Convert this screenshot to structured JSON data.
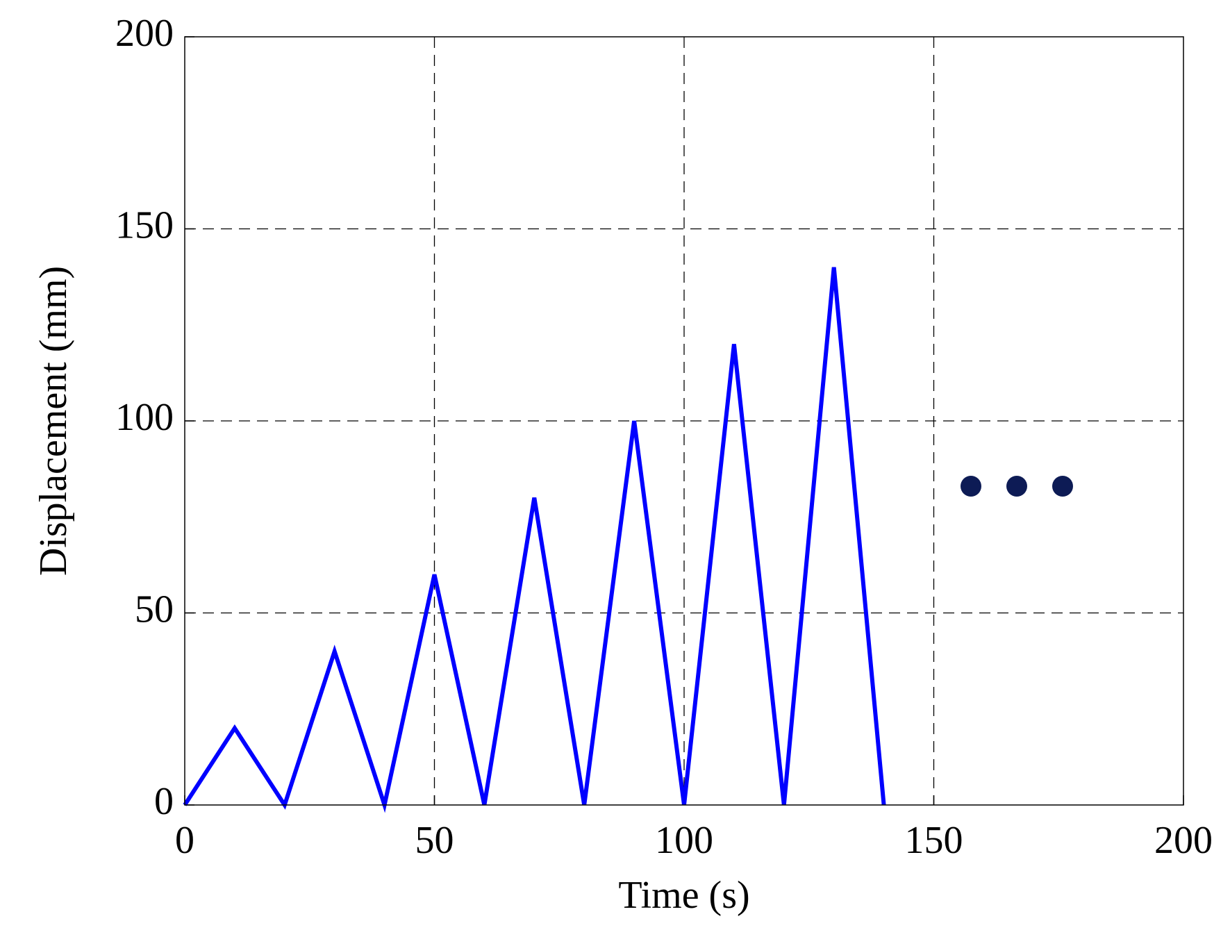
{
  "chart_data": {
    "type": "line",
    "xlabel": "Time (s)",
    "ylabel": "Displacement (mm)",
    "x": [
      0,
      10,
      20,
      30,
      40,
      50,
      60,
      70,
      80,
      90,
      100,
      110,
      120,
      130,
      140
    ],
    "series": [
      {
        "name": "Displacement",
        "color": "#0000ff",
        "values": [
          0,
          20,
          0,
          40,
          0,
          60,
          0,
          80,
          0,
          100,
          0,
          120,
          0,
          140,
          0
        ]
      }
    ],
    "xlim": [
      0,
      200
    ],
    "xticks": [
      0,
      50,
      100,
      150,
      200
    ],
    "ylim": [
      0,
      200
    ],
    "yticks": [
      0,
      50,
      100,
      150,
      200
    ],
    "grid": true,
    "legend": false
  }
}
